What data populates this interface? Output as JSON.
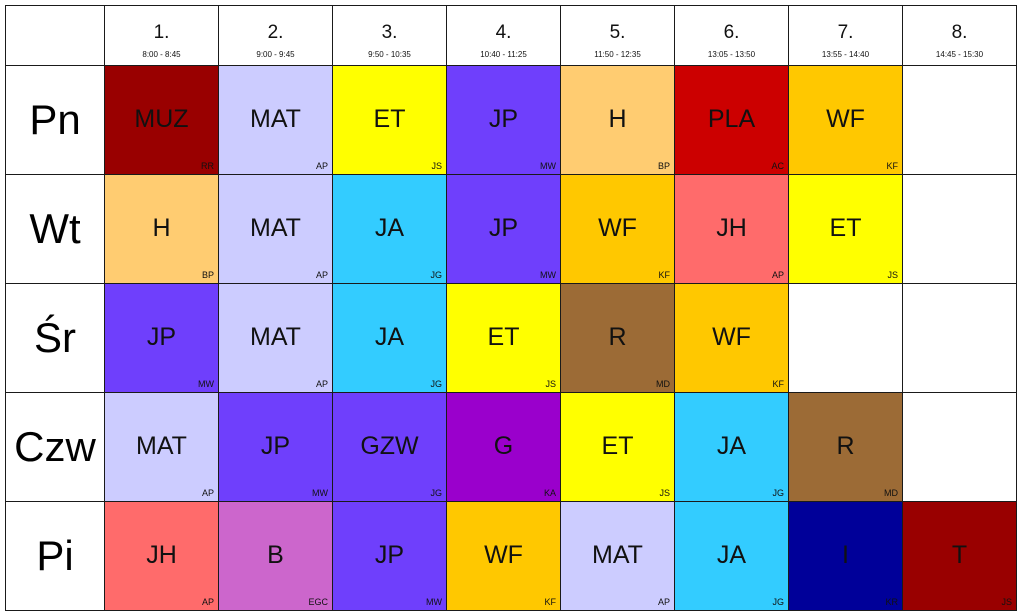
{
  "colors": {
    "MUZ": "#990000",
    "MAT": "#ccccff",
    "ET": "#ffff00",
    "JP": "#6f3ffc",
    "H": "#ffcc71",
    "PLA": "#cc0000",
    "WF": "#ffc800",
    "JA": "#33ccff",
    "JH": "#ff6b6b",
    "R": "#9c6b36",
    "GZW": "#6f3ffc",
    "G": "#9a00cc",
    "B": "#cc66cc",
    "I": "#000099",
    "T": "#990000",
    "empty": "#ffffff"
  },
  "periods": [
    {
      "number": "1.",
      "time": "8:00 - 8:45"
    },
    {
      "number": "2.",
      "time": "9:00 - 9:45"
    },
    {
      "number": "3.",
      "time": "9:50 - 10:35"
    },
    {
      "number": "4.",
      "time": "10:40 - 11:25"
    },
    {
      "number": "5.",
      "time": "11:50 - 12:35"
    },
    {
      "number": "6.",
      "time": "13:05 - 13:50"
    },
    {
      "number": "7.",
      "time": "13:55 - 14:40"
    },
    {
      "number": "8.",
      "time": "14:45 - 15:30"
    }
  ],
  "days": [
    {
      "label": "Pn",
      "lessons": [
        {
          "subject": "MUZ",
          "teacher": "RR"
        },
        {
          "subject": "MAT",
          "teacher": "AP"
        },
        {
          "subject": "ET",
          "teacher": "JS"
        },
        {
          "subject": "JP",
          "teacher": "MW"
        },
        {
          "subject": "H",
          "teacher": "BP"
        },
        {
          "subject": "PLA",
          "teacher": "AC"
        },
        {
          "subject": "WF",
          "teacher": "KF"
        },
        {
          "subject": "",
          "teacher": ""
        }
      ]
    },
    {
      "label": "Wt",
      "lessons": [
        {
          "subject": "H",
          "teacher": "BP"
        },
        {
          "subject": "MAT",
          "teacher": "AP"
        },
        {
          "subject": "JA",
          "teacher": "JG"
        },
        {
          "subject": "JP",
          "teacher": "MW"
        },
        {
          "subject": "WF",
          "teacher": "KF"
        },
        {
          "subject": "JH",
          "teacher": "AP"
        },
        {
          "subject": "ET",
          "teacher": "JS"
        },
        {
          "subject": "",
          "teacher": ""
        }
      ]
    },
    {
      "label": "Śr",
      "lessons": [
        {
          "subject": "JP",
          "teacher": "MW"
        },
        {
          "subject": "MAT",
          "teacher": "AP"
        },
        {
          "subject": "JA",
          "teacher": "JG"
        },
        {
          "subject": "ET",
          "teacher": "JS"
        },
        {
          "subject": "R",
          "teacher": "MD"
        },
        {
          "subject": "WF",
          "teacher": "KF"
        },
        {
          "subject": "",
          "teacher": ""
        },
        {
          "subject": "",
          "teacher": ""
        }
      ]
    },
    {
      "label": "Czw",
      "lessons": [
        {
          "subject": "MAT",
          "teacher": "AP"
        },
        {
          "subject": "JP",
          "teacher": "MW"
        },
        {
          "subject": "GZW",
          "teacher": "JG"
        },
        {
          "subject": "G",
          "teacher": "KA"
        },
        {
          "subject": "ET",
          "teacher": "JS"
        },
        {
          "subject": "JA",
          "teacher": "JG"
        },
        {
          "subject": "R",
          "teacher": "MD"
        },
        {
          "subject": "",
          "teacher": ""
        }
      ]
    },
    {
      "label": "Pi",
      "lessons": [
        {
          "subject": "JH",
          "teacher": "AP"
        },
        {
          "subject": "B",
          "teacher": "EGC"
        },
        {
          "subject": "JP",
          "teacher": "MW"
        },
        {
          "subject": "WF",
          "teacher": "KF"
        },
        {
          "subject": "MAT",
          "teacher": "AP"
        },
        {
          "subject": "JA",
          "teacher": "JG"
        },
        {
          "subject": "I",
          "teacher": "KR"
        },
        {
          "subject": "T",
          "teacher": "JS"
        }
      ]
    }
  ]
}
